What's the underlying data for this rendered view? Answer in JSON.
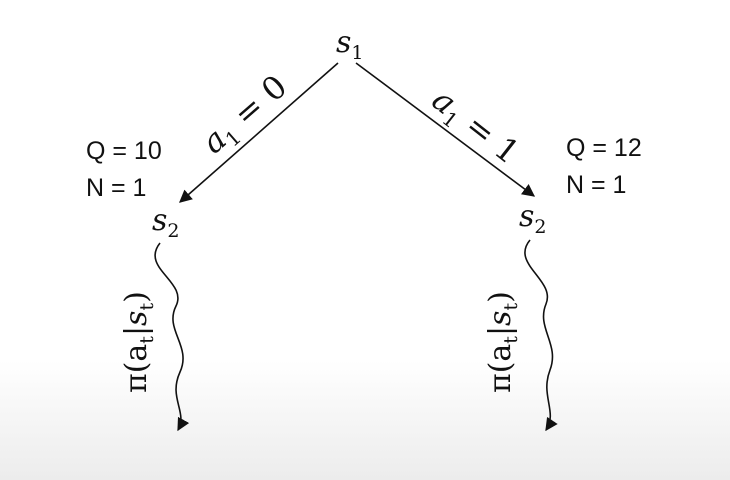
{
  "diagram": {
    "root": {
      "label": "s",
      "subscript": "1"
    },
    "left": {
      "edge": {
        "var": "a",
        "sub": "1",
        "rel": " = 0"
      },
      "node": {
        "label": "s",
        "subscript": "2"
      },
      "stats": {
        "q": "Q = 10",
        "n": "N = 1"
      },
      "rollout": {
        "pre": "π(a",
        "sub1": "t",
        "mid": "|s",
        "sub2": "t",
        "post": ")"
      }
    },
    "right": {
      "edge": {
        "var": "a",
        "sub": "1",
        "rel": " = 1"
      },
      "node": {
        "label": "s",
        "subscript": "2"
      },
      "stats": {
        "q": "Q = 12",
        "n": "N = 1"
      },
      "rollout": {
        "pre": "π(a",
        "sub1": "t",
        "mid": "|s",
        "sub2": "t",
        "post": ")"
      }
    }
  }
}
